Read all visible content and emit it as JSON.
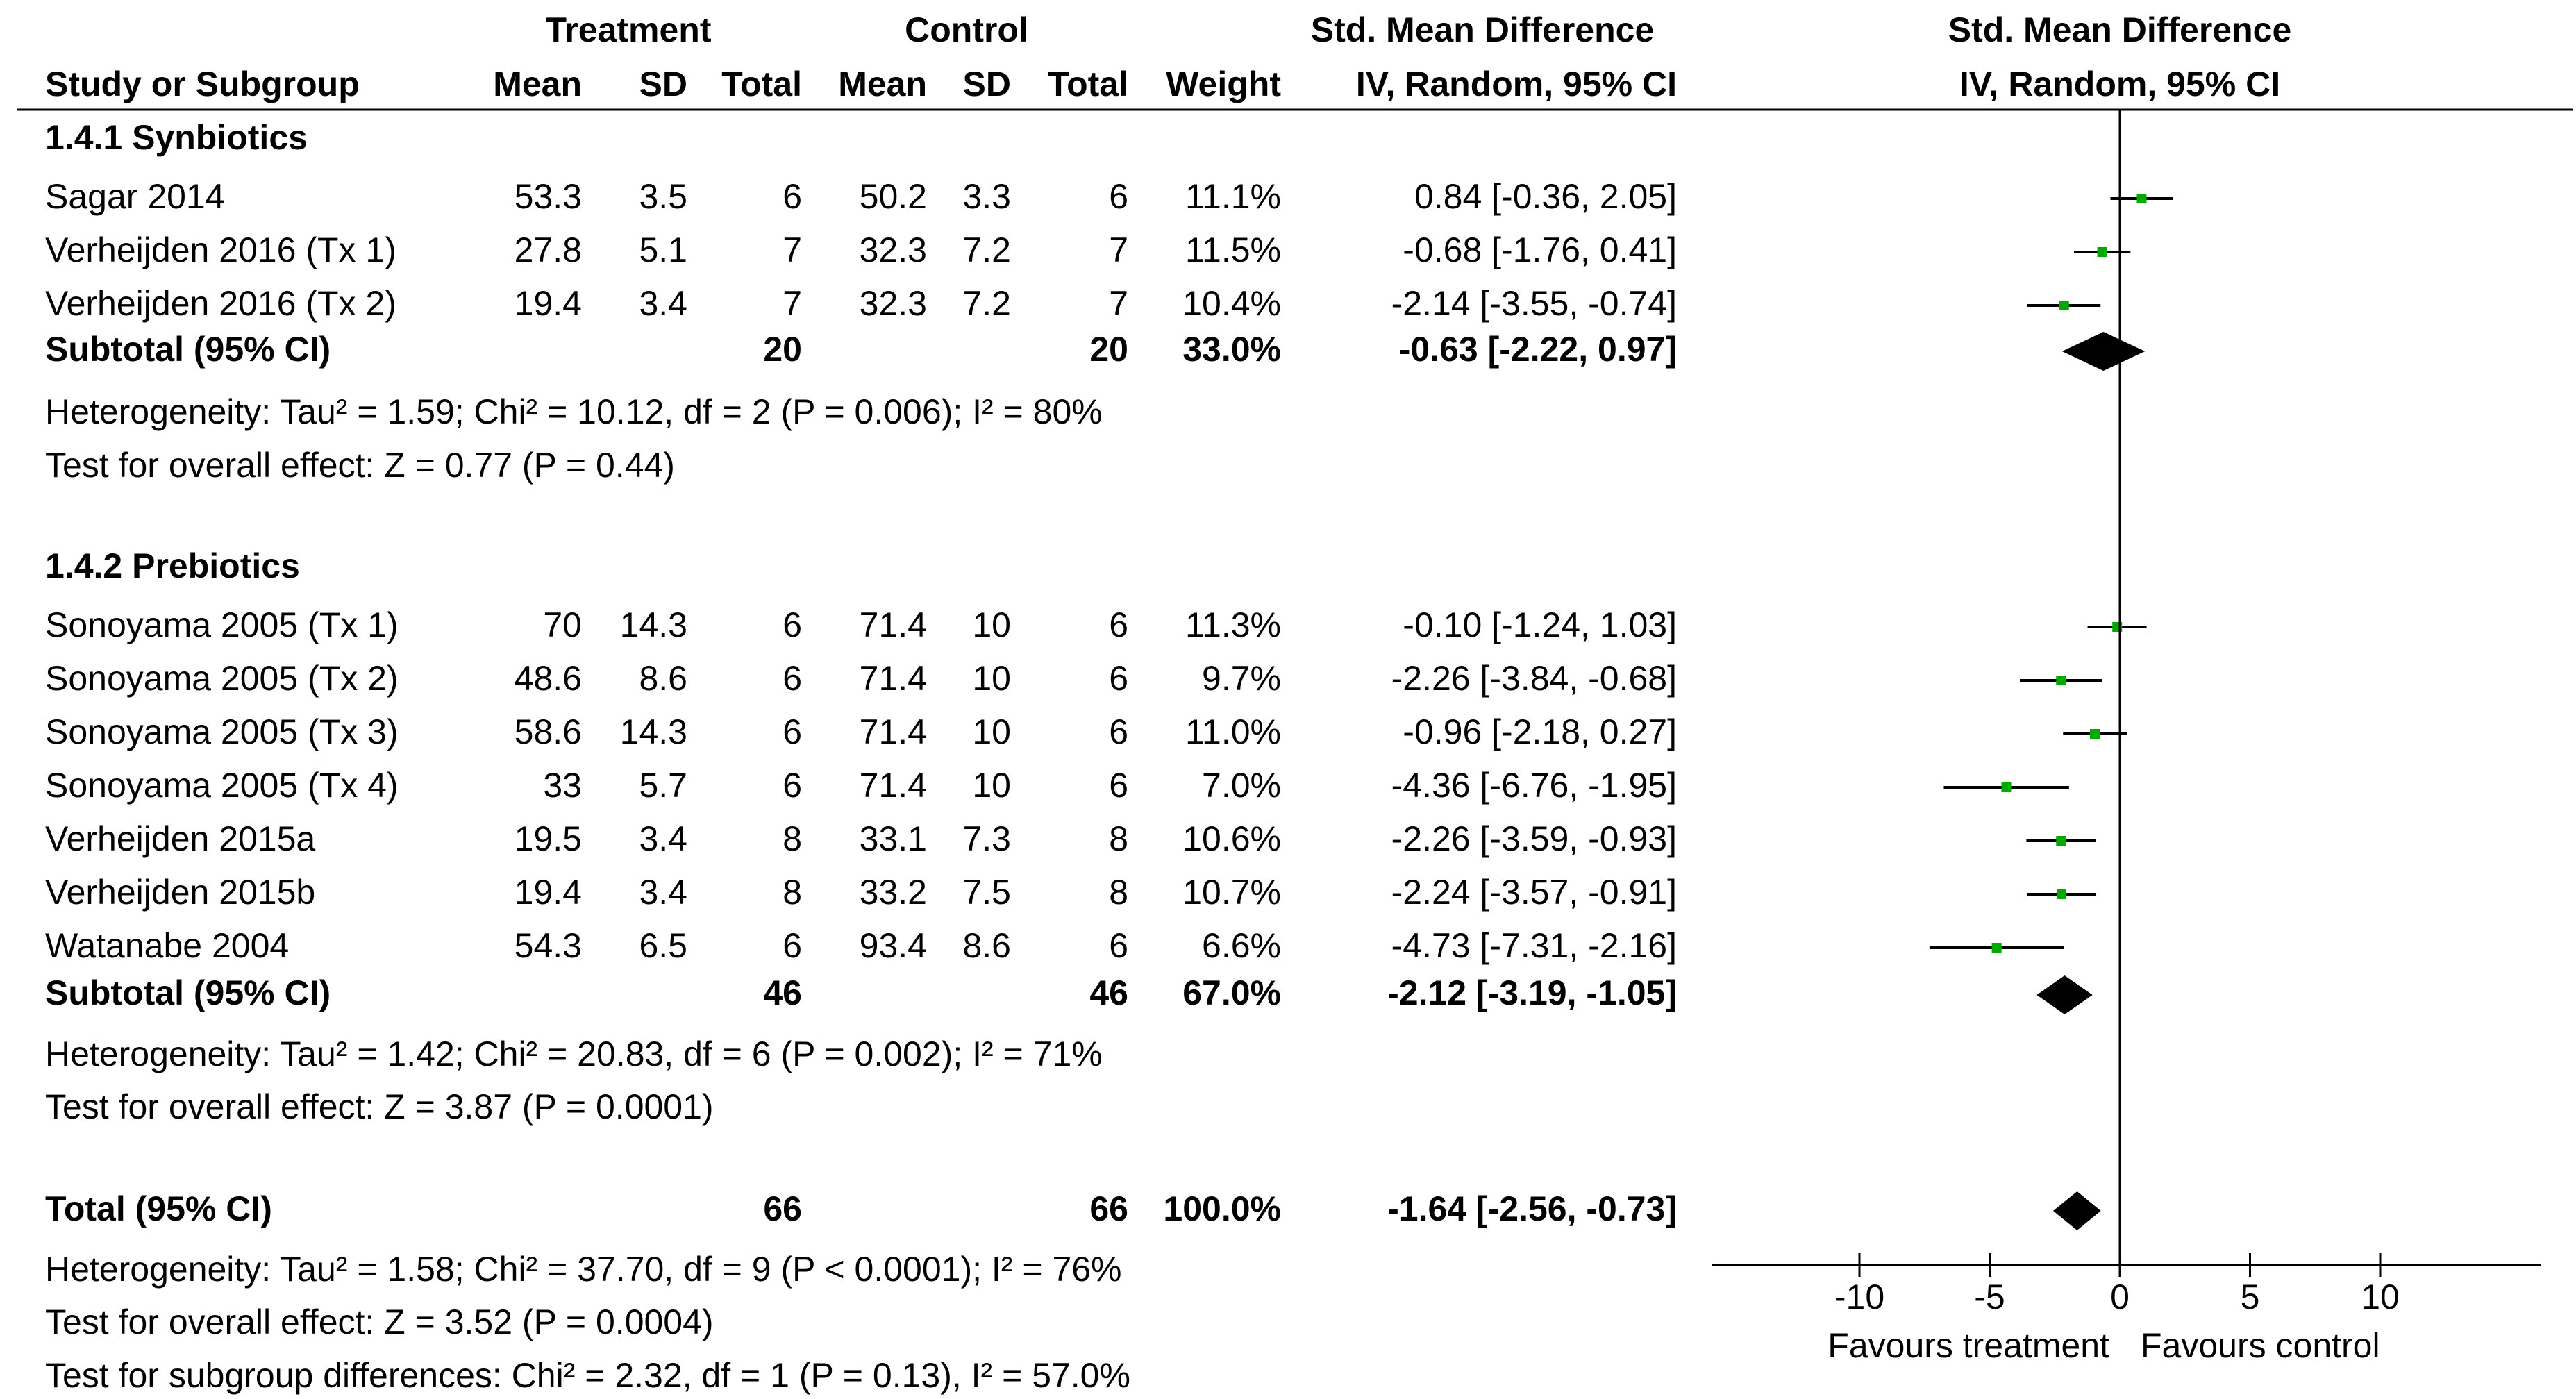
{
  "header": {
    "treatment": "Treatment",
    "control": "Control",
    "smd_col_title": "Std. Mean Difference",
    "smd_col_sub": "IV, Random, 95% CI",
    "plot_title": "Std. Mean Difference",
    "plot_sub": "IV, Random, 95% CI",
    "study": "Study or Subgroup",
    "mean": "Mean",
    "sd": "SD",
    "total": "Total",
    "weight": "Weight"
  },
  "colors": {
    "point": "#00aa00",
    "diamond": "#000000",
    "text": "#000000"
  },
  "chart_data": {
    "type": "forest",
    "xlim": [
      -10,
      10
    ],
    "xticks": [
      "-10",
      "-5",
      "0",
      "5",
      "10"
    ],
    "xlabel_left": "Favours treatment",
    "xlabel_right": "Favours control",
    "groups": [
      {
        "name": "1.4.1 Synbiotics",
        "studies": [
          {
            "name": "Sagar 2014",
            "t_mean": "53.3",
            "t_sd": "3.5",
            "t_total": "6",
            "c_mean": "50.2",
            "c_sd": "3.3",
            "c_total": "6",
            "weight": "11.1%",
            "ci_text": "0.84 [-0.36, 2.05]",
            "est": 0.84,
            "lo": -0.36,
            "hi": 2.05
          },
          {
            "name": "Verheijden 2016 (Tx 1)",
            "t_mean": "27.8",
            "t_sd": "5.1",
            "t_total": "7",
            "c_mean": "32.3",
            "c_sd": "7.2",
            "c_total": "7",
            "weight": "11.5%",
            "ci_text": "-0.68 [-1.76, 0.41]",
            "est": -0.68,
            "lo": -1.76,
            "hi": 0.41
          },
          {
            "name": "Verheijden 2016 (Tx 2)",
            "t_mean": "19.4",
            "t_sd": "3.4",
            "t_total": "7",
            "c_mean": "32.3",
            "c_sd": "7.2",
            "c_total": "7",
            "weight": "10.4%",
            "ci_text": "-2.14 [-3.55, -0.74]",
            "est": -2.14,
            "lo": -3.55,
            "hi": -0.74
          }
        ],
        "subtotal": {
          "label": "Subtotal (95% CI)",
          "t_total": "20",
          "c_total": "20",
          "weight": "33.0%",
          "ci_text": "-0.63 [-2.22, 0.97]",
          "est": -0.63,
          "lo": -2.22,
          "hi": 0.97
        },
        "heterogeneity": "Heterogeneity: Tau² = 1.59; Chi² = 10.12, df = 2 (P = 0.006); I² = 80%",
        "overall": "Test for overall effect: Z = 0.77 (P = 0.44)"
      },
      {
        "name": "1.4.2 Prebiotics",
        "studies": [
          {
            "name": "Sonoyama 2005 (Tx 1)",
            "t_mean": "70",
            "t_sd": "14.3",
            "t_total": "6",
            "c_mean": "71.4",
            "c_sd": "10",
            "c_total": "6",
            "weight": "11.3%",
            "ci_text": "-0.10 [-1.24, 1.03]",
            "est": -0.1,
            "lo": -1.24,
            "hi": 1.03
          },
          {
            "name": "Sonoyama 2005 (Tx 2)",
            "t_mean": "48.6",
            "t_sd": "8.6",
            "t_total": "6",
            "c_mean": "71.4",
            "c_sd": "10",
            "c_total": "6",
            "weight": "9.7%",
            "ci_text": "-2.26 [-3.84, -0.68]",
            "est": -2.26,
            "lo": -3.84,
            "hi": -0.68
          },
          {
            "name": "Sonoyama 2005 (Tx 3)",
            "t_mean": "58.6",
            "t_sd": "14.3",
            "t_total": "6",
            "c_mean": "71.4",
            "c_sd": "10",
            "c_total": "6",
            "weight": "11.0%",
            "ci_text": "-0.96 [-2.18, 0.27]",
            "est": -0.96,
            "lo": -2.18,
            "hi": 0.27
          },
          {
            "name": "Sonoyama 2005 (Tx 4)",
            "t_mean": "33",
            "t_sd": "5.7",
            "t_total": "6",
            "c_mean": "71.4",
            "c_sd": "10",
            "c_total": "6",
            "weight": "7.0%",
            "ci_text": "-4.36 [-6.76, -1.95]",
            "est": -4.36,
            "lo": -6.76,
            "hi": -1.95
          },
          {
            "name": "Verheijden 2015a",
            "t_mean": "19.5",
            "t_sd": "3.4",
            "t_total": "8",
            "c_mean": "33.1",
            "c_sd": "7.3",
            "c_total": "8",
            "weight": "10.6%",
            "ci_text": "-2.26 [-3.59, -0.93]",
            "est": -2.26,
            "lo": -3.59,
            "hi": -0.93
          },
          {
            "name": "Verheijden 2015b",
            "t_mean": "19.4",
            "t_sd": "3.4",
            "t_total": "8",
            "c_mean": "33.2",
            "c_sd": "7.5",
            "c_total": "8",
            "weight": "10.7%",
            "ci_text": "-2.24 [-3.57, -0.91]",
            "est": -2.24,
            "lo": -3.57,
            "hi": -0.91
          },
          {
            "name": "Watanabe 2004",
            "t_mean": "54.3",
            "t_sd": "6.5",
            "t_total": "6",
            "c_mean": "93.4",
            "c_sd": "8.6",
            "c_total": "6",
            "weight": "6.6%",
            "ci_text": "-4.73 [-7.31, -2.16]",
            "est": -4.73,
            "lo": -7.31,
            "hi": -2.16
          }
        ],
        "subtotal": {
          "label": "Subtotal (95% CI)",
          "t_total": "46",
          "c_total": "46",
          "weight": "67.0%",
          "ci_text": "-2.12 [-3.19, -1.05]",
          "est": -2.12,
          "lo": -3.19,
          "hi": -1.05
        },
        "heterogeneity": "Heterogeneity: Tau² = 1.42; Chi² = 20.83, df = 6 (P = 0.002); I² = 71%",
        "overall": "Test for overall effect: Z = 3.87 (P = 0.0001)"
      }
    ],
    "total": {
      "label": "Total (95% CI)",
      "t_total": "66",
      "c_total": "66",
      "weight": "100.0%",
      "ci_text": "-1.64 [-2.56, -0.73]",
      "est": -1.64,
      "lo": -2.56,
      "hi": -0.73
    },
    "total_heterogeneity": "Heterogeneity: Tau² = 1.58; Chi² = 37.70, df = 9 (P < 0.0001); I² = 76%",
    "total_overall": "Test for overall effect: Z = 3.52 (P = 0.0004)",
    "subgroup_diff": "Test for subgroup differences: Chi² = 2.32, df = 1 (P = 0.13), I² = 57.0%"
  }
}
